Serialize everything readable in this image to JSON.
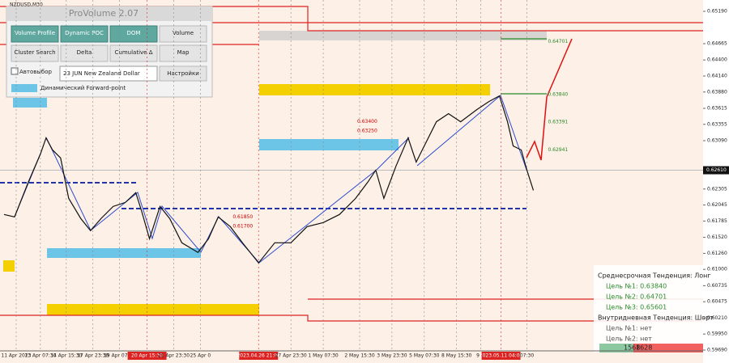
{
  "chart_data": {
    "type": "line",
    "title": "NZDUSD,M30",
    "xlim": [
      0,
      87
    ],
    "ylim": [
      0.5969,
      0.6519
    ],
    "xticks": [
      {
        "value": 2,
        "label": "11 Apr 2023"
      },
      {
        "value": 5,
        "label": "13 Apr 07:30"
      },
      {
        "value": 8.2,
        "label": "14 Apr 15:30"
      },
      {
        "value": 11.5,
        "label": "17 Apr 23:30"
      },
      {
        "value": 14.8,
        "label": "19 Apr 07:30"
      },
      {
        "value": 18.2,
        "label": "20 Apr 15:30"
      },
      {
        "value": 21.5,
        "label": "21 Apr 23:30"
      },
      {
        "value": 24.8,
        "label": "25 Apr 0"
      },
      {
        "value": 32,
        "label": "2023.04.26 21:00"
      },
      {
        "value": 36,
        "label": "27 Apr 23:30"
      },
      {
        "value": 40,
        "label": "1 May 07:30"
      },
      {
        "value": 44.5,
        "label": "2 May 15:30"
      },
      {
        "value": 48.5,
        "label": "3 May 23:30"
      },
      {
        "value": 52.5,
        "label": "5 May 07:30"
      },
      {
        "value": 56.5,
        "label": "8 May 15:30"
      },
      {
        "value": 59.5,
        "label": "9 M"
      },
      {
        "value": 62,
        "label": "2023.05.11 04:00"
      },
      {
        "value": 65.2,
        "label": "07:30"
      }
    ],
    "yticks": [
      {
        "value": 0.5969,
        "label": "0.59690"
      },
      {
        "value": 0.5995,
        "label": "0.59950"
      },
      {
        "value": 0.6021,
        "label": "0.60210"
      },
      {
        "value": 0.60475,
        "label": "0.60475"
      },
      {
        "value": 0.60735,
        "label": "0.60735"
      },
      {
        "value": 0.61,
        "label": "0.61000"
      },
      {
        "value": 0.6126,
        "label": "0.61260"
      },
      {
        "value": 0.6152,
        "label": "0.61520"
      },
      {
        "value": 0.61785,
        "label": "0.61785"
      },
      {
        "value": 0.62045,
        "label": "0.62045"
      },
      {
        "value": 0.62305,
        "label": "0.62305"
      },
      {
        "value": 0.6309,
        "label": "0.63090"
      },
      {
        "value": 0.63355,
        "label": "0.63355"
      },
      {
        "value": 0.63615,
        "label": "0.63615"
      },
      {
        "value": 0.6388,
        "label": "0.63880"
      },
      {
        "value": 0.6414,
        "label": "0.64140"
      },
      {
        "value": 0.644,
        "label": "0.64400"
      },
      {
        "value": 0.64665,
        "label": "0.64665"
      },
      {
        "value": 0.6519,
        "label": "0.65190"
      }
    ],
    "current_price": {
      "value": 0.6261,
      "label": "0.62610"
    },
    "series": [
      {
        "name": "NZDUSD",
        "color": "#111111",
        "x": [
          0.5,
          1.8,
          3.5,
          5,
          5.7,
          6.5,
          7.5,
          8.5,
          10,
          11.2,
          12.5,
          14,
          15.5,
          16.8,
          17.5,
          18.5,
          19.8,
          21,
          22.5,
          24.5,
          25.8,
          27,
          28.5,
          30,
          32,
          34,
          36,
          38,
          40,
          42,
          44,
          45.5,
          46.5,
          47.5,
          49,
          50.5,
          51.5,
          52.5,
          54,
          55.5,
          57,
          59,
          60.5,
          61.8,
          62.8,
          63.5,
          64.5,
          65.2,
          66
        ],
        "values": [
          0.61891,
          0.61852,
          0.62415,
          0.62873,
          0.63135,
          0.62939,
          0.62808,
          0.62153,
          0.61825,
          0.61629,
          0.61825,
          0.62022,
          0.62087,
          0.62245,
          0.61956,
          0.61498,
          0.62022,
          0.61825,
          0.61432,
          0.61275,
          0.61498,
          0.61852,
          0.61694,
          0.61432,
          0.61105,
          0.61432,
          0.61432,
          0.61694,
          0.6176,
          0.61891,
          0.62153,
          0.62415,
          0.62611,
          0.62153,
          0.62677,
          0.63135,
          0.62742,
          0.63004,
          0.63397,
          0.63528,
          0.63397,
          0.63594,
          0.63725,
          0.63817,
          0.63397,
          0.63004,
          0.62939,
          0.62611,
          0.62284
        ]
      }
    ],
    "level_labels": [
      {
        "value": 0.64701,
        "label": "0.64701",
        "x": 67.8
      },
      {
        "value": 0.6384,
        "label": "0.63840",
        "x": 67.8
      },
      {
        "value": 0.63391,
        "label": "0.63391",
        "x": 67.8
      },
      {
        "value": 0.62941,
        "label": "0.62941",
        "x": 67.8
      },
      {
        "value": 0.634,
        "label": "0.63400",
        "x": 44.2
      },
      {
        "value": 0.6325,
        "label": "0.63250",
        "x": 44.2
      },
      {
        "value": 0.6185,
        "label": "0.61850",
        "x": 28.8
      },
      {
        "value": 0.617,
        "label": "0.61700",
        "x": 28.8
      }
    ]
  },
  "panel": {
    "title": "ProVolume 2.07",
    "buttons": [
      "Volume Profile",
      "Dynamic POC",
      "DOM",
      "Volume",
      "Cluster Search",
      "Delta",
      "Cumulative Δ",
      "Map"
    ],
    "auto_select": "Автовыбор",
    "instrument": "23 JUN New Zealand Dollar",
    "settings": "Настройки",
    "forward_point": "Динамический Forward-point"
  },
  "trend_box": {
    "lines": [
      "Среднесрочная Тенденция: Лонг",
      "Цель №1: 0.63840",
      "Цель №2: 0.64701",
      "Цель №3: 0.65601",
      "Внутридневная Тенденция: Шорт",
      "Цель №1: нет",
      "Цель №2: нет"
    ],
    "buy": "1568",
    "sell": "1628"
  }
}
